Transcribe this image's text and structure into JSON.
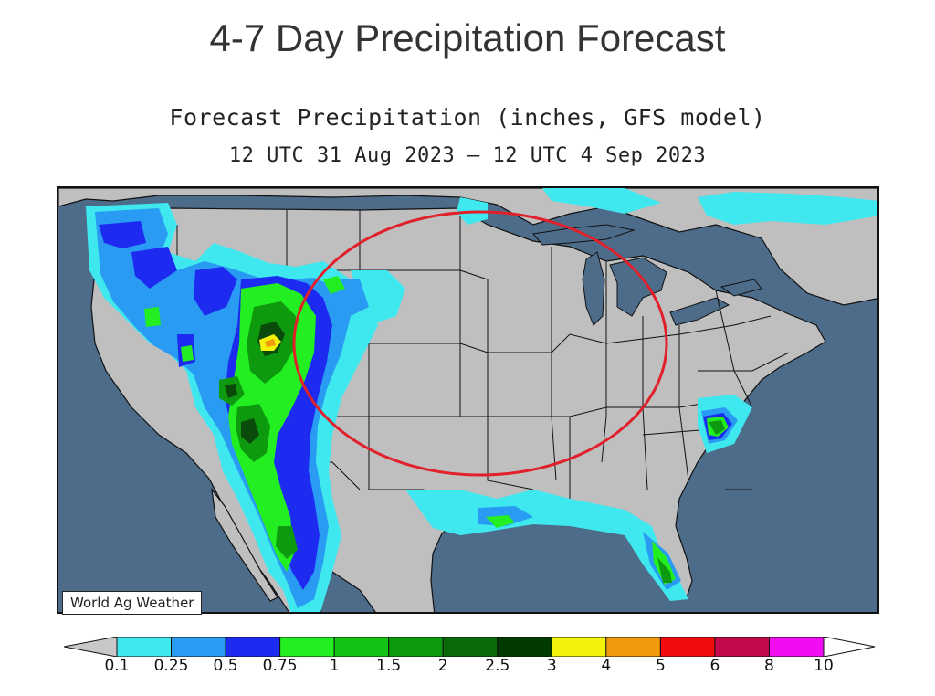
{
  "page_title": "4-7 Day Precipitation Forecast",
  "map": {
    "title": "Forecast Precipitation (inches, GFS model)",
    "period": "12 UTC 31 Aug 2023 – 12 UTC 4 Sep 2023",
    "credit": "World Ag Weather",
    "highlight_circle_color": "#e0202a"
  },
  "legend": {
    "labels": [
      "0.1",
      "0.25",
      "0.5",
      "0.75",
      "1",
      "1.5",
      "2",
      "2.5",
      "3",
      "4",
      "5",
      "6",
      "8",
      "10"
    ],
    "colors": [
      "#3fe8ef",
      "#2a9bf2",
      "#1d2bf0",
      "#22ee22",
      "#14c414",
      "#0e9a0e",
      "#0a6a0a",
      "#003a00",
      "#f2f20c",
      "#f29a0c",
      "#f20c0c",
      "#c4084c",
      "#f20cf2",
      "#a24cd8"
    ],
    "under_color": "#c8c8c8",
    "over_color": "#ffffff"
  },
  "colors": {
    "land": "#bfbfbf",
    "water": "#4d6c8a",
    "borders": "#111111"
  }
}
